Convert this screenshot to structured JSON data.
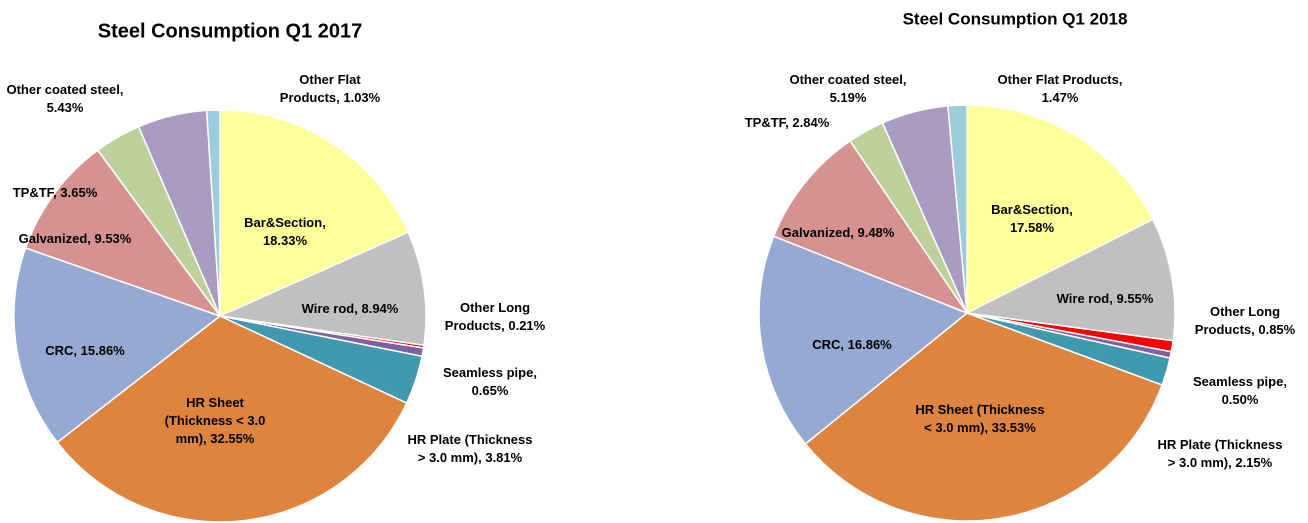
{
  "chart_data": [
    {
      "type": "pie",
      "title": "Steel Consumption Q1 2017",
      "values": [
        18.33,
        8.94,
        0.21,
        0.65,
        3.81,
        32.55,
        15.86,
        9.53,
        3.65,
        5.43,
        1.03
      ],
      "labels": [
        [
          "Bar&Section,",
          "18.33%"
        ],
        [
          "Wire rod, 8.94%"
        ],
        [
          "Other Long",
          "Products, 0.21%"
        ],
        [
          "Seamless pipe,",
          "0.65%"
        ],
        [
          "HR Plate (Thickness",
          "> 3.0 mm), 3.81%"
        ],
        [
          "HR Sheet",
          "(Thickness < 3.0",
          "mm), 32.55%"
        ],
        [
          "CRC, 15.86%"
        ],
        [
          "Galvanized, 9.53%"
        ],
        [
          "TP&TF, 3.65%"
        ],
        [
          "Other coated steel,",
          "5.43%"
        ],
        [
          "Other Flat",
          "Products, 1.03%"
        ]
      ],
      "colors": [
        "#FFFF99",
        "#C0C0C0",
        "#FF0000",
        "#7F5F9F",
        "#4099AF",
        "#DE843F",
        "#95A9D2",
        "#D59290",
        "#BCD19A",
        "#A99BC2",
        "#9CCBDB"
      ]
    },
    {
      "type": "pie",
      "title": "Steel Consumption Q1 2018",
      "values": [
        17.58,
        9.55,
        0.85,
        0.5,
        2.15,
        33.53,
        16.86,
        9.48,
        2.84,
        5.19,
        1.47
      ],
      "labels": [
        [
          "Bar&Section,",
          "17.58%"
        ],
        [
          "Wire rod, 9.55%"
        ],
        [
          "Other Long",
          "Products, 0.85%"
        ],
        [
          "Seamless pipe,",
          "0.50%"
        ],
        [
          "HR Plate (Thickness",
          "> 3.0 mm), 2.15%"
        ],
        [
          "HR Sheet (Thickness",
          "< 3.0 mm), 33.53%"
        ],
        [
          "CRC, 16.86%"
        ],
        [
          "Galvanized, 9.48%"
        ],
        [
          "TP&TF, 2.84%"
        ],
        [
          "Other coated steel,",
          "5.19%"
        ],
        [
          "Other Flat Products,",
          "1.47%"
        ]
      ],
      "colors": [
        "#FFFF99",
        "#C0C0C0",
        "#FF0000",
        "#7F5F9F",
        "#4099AF",
        "#DE843F",
        "#95A9D2",
        "#D59290",
        "#BCD19A",
        "#A99BC2",
        "#9CCBDB"
      ]
    }
  ]
}
